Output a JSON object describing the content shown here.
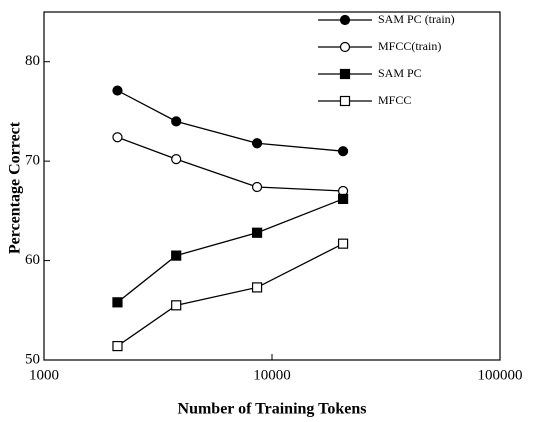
{
  "chart_data": {
    "type": "line",
    "xlabel": "Number of Training Tokens",
    "ylabel": "Percentage Correct",
    "x": [
      2100,
      3800,
      8600,
      20500
    ],
    "xscale": "log",
    "xlim": [
      1000,
      100000
    ],
    "xticks": [
      1000,
      10000,
      100000
    ],
    "ylim": [
      50,
      85
    ],
    "yticks": [
      50,
      60,
      70,
      80
    ],
    "legend": "upper right",
    "series": [
      {
        "name": "SAM PC (train)",
        "color": "#000000",
        "marker": "filled-circle",
        "values": [
          77.1,
          74.0,
          71.8,
          71.0
        ]
      },
      {
        "name": "MFCC(train)",
        "color": "#000000",
        "marker": "open-circle",
        "values": [
          72.4,
          70.2,
          67.4,
          67.0
        ]
      },
      {
        "name": "SAM PC",
        "color": "#000000",
        "marker": "filled-square",
        "values": [
          55.8,
          60.5,
          62.8,
          66.2
        ]
      },
      {
        "name": "MFCC",
        "color": "#000000",
        "marker": "open-square",
        "values": [
          51.4,
          55.5,
          57.3,
          61.7
        ]
      }
    ]
  }
}
